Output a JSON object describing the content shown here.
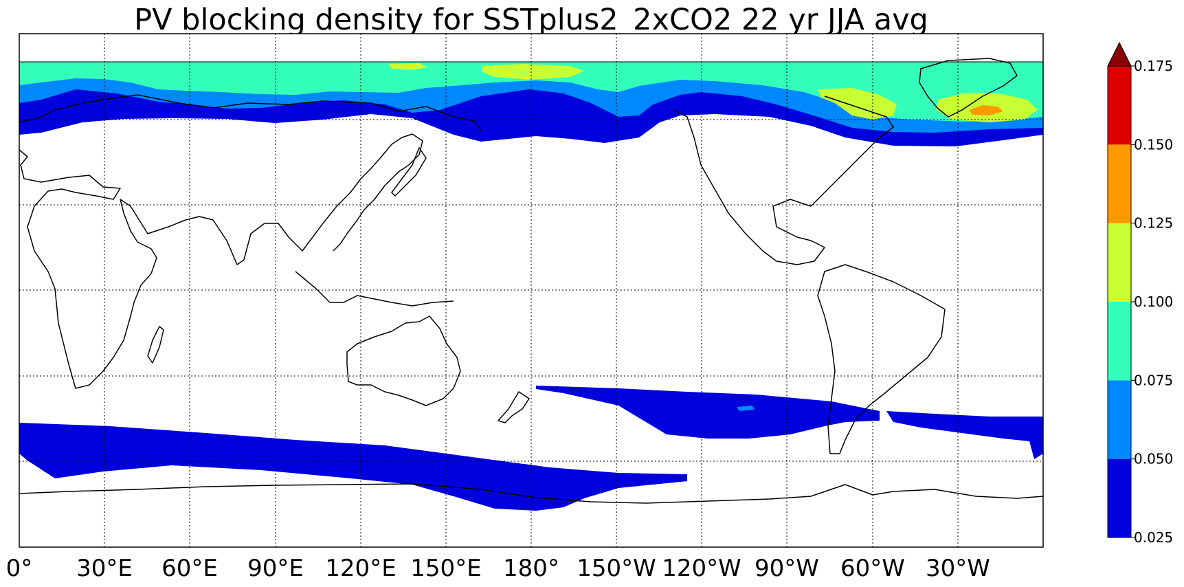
{
  "chart_data": {
    "type": "heatmap",
    "title": "PV blocking density for SSTplus2_2xCO2 22 yr JJA avg",
    "projection": "cylindrical equidistant, 0° to 360° longitude",
    "lon_ticks": [
      "0°",
      "30°E",
      "60°E",
      "90°E",
      "120°E",
      "150°E",
      "180°",
      "150°W",
      "120°W",
      "90°W",
      "60°W",
      "30°W"
    ],
    "lon_tick_values": [
      0,
      30,
      60,
      90,
      120,
      150,
      180,
      210,
      240,
      270,
      300,
      330
    ],
    "lat_range": [
      -90,
      90
    ],
    "grid": true,
    "colorbar": {
      "levels": [
        0.025,
        0.05,
        0.075,
        0.1,
        0.125,
        0.15,
        0.175
      ],
      "tick_labels": [
        "0.025",
        "0.050",
        "0.075",
        "0.100",
        "0.125",
        "0.150",
        "0.175"
      ],
      "colors": [
        "#0000dd",
        "#0088ff",
        "#33ffbb",
        "#c8ff33",
        "#ff9900",
        "#dd0000"
      ],
      "extend_color": "#880000",
      "extend": "max",
      "placement": "right"
    },
    "features": {
      "nh_band_lat": [
        50,
        80
      ],
      "nh_maximum": {
        "location": "Greenland / North Atlantic",
        "lon": 327,
        "lat": 67,
        "level": "0.125-0.150"
      },
      "nh_secondary_maxima": [
        {
          "location": "Canadian Arctic / Davis Strait",
          "lon": 300,
          "lat": 68,
          "level": "0.100-0.125"
        },
        {
          "location": "East Siberian Sea",
          "lon": 165,
          "lat": 77,
          "level": "0.100-0.125"
        }
      ],
      "sh_bands": [
        {
          "location": "Southern Indian Ocean",
          "lon_range": [
            0,
            235
          ],
          "lat_range": [
            -68,
            -48
          ],
          "level": "0.025-0.050"
        },
        {
          "location": "South Pacific",
          "lon_range": [
            180,
            315
          ],
          "lat_range": [
            -55,
            -35
          ],
          "level": "0.025-0.050"
        },
        {
          "location": "South Atlantic",
          "lon_range": [
            302,
            360
          ],
          "lat_range": [
            -55,
            -45
          ],
          "level": "0.025-0.050"
        }
      ]
    }
  }
}
